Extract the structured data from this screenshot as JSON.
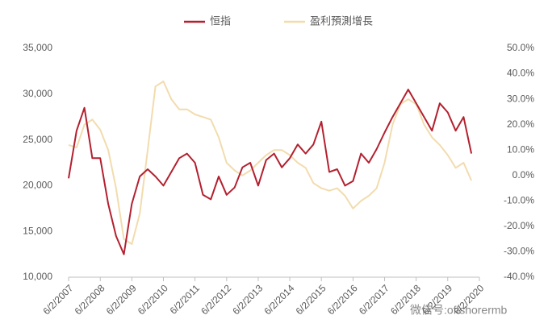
{
  "chart_data": {
    "type": "line",
    "watermark": "微信号:offshorermb",
    "x": [
      "2007-06-02",
      "2007-09-02",
      "2007-12-02",
      "2008-03-02",
      "2008-06-02",
      "2008-09-02",
      "2008-12-02",
      "2009-03-02",
      "2009-06-02",
      "2009-09-02",
      "2009-12-02",
      "2010-03-02",
      "2010-06-02",
      "2010-09-02",
      "2010-12-02",
      "2011-03-02",
      "2011-06-02",
      "2011-09-02",
      "2011-12-02",
      "2012-03-02",
      "2012-06-02",
      "2012-09-02",
      "2012-12-02",
      "2013-03-02",
      "2013-06-02",
      "2013-09-02",
      "2013-12-02",
      "2014-03-02",
      "2014-06-02",
      "2014-09-02",
      "2014-12-02",
      "2015-03-02",
      "2015-06-02",
      "2015-09-02",
      "2015-12-02",
      "2016-03-02",
      "2016-06-02",
      "2016-09-02",
      "2016-12-02",
      "2017-03-02",
      "2017-06-02",
      "2017-09-02",
      "2017-12-02",
      "2018-03-02",
      "2018-06-02",
      "2018-09-02",
      "2018-12-02",
      "2019-03-02",
      "2019-06-02",
      "2019-09-02",
      "2019-12-02",
      "2020-03-02"
    ],
    "series": [
      {
        "name": "恒指",
        "color": "#b3202f",
        "axis": "y",
        "values": [
          20800,
          26000,
          28500,
          23000,
          23000,
          18000,
          14500,
          12500,
          18000,
          21000,
          21800,
          21000,
          20000,
          21500,
          23000,
          23500,
          22500,
          19000,
          18500,
          21000,
          19000,
          19800,
          22000,
          22500,
          20000,
          22800,
          23500,
          22000,
          23000,
          24500,
          23500,
          24500,
          27000,
          21500,
          21800,
          20000,
          20500,
          23500,
          22500,
          24000,
          25800,
          27500,
          29000,
          30500,
          29000,
          27500,
          26000,
          29000,
          28000,
          26000,
          27500,
          23500
        ]
      },
      {
        "name": "盈利預測增長",
        "color": "#f2dcae",
        "axis": "y2",
        "values": [
          12,
          11,
          20,
          22,
          18,
          10,
          -5,
          -25,
          -27,
          -15,
          10,
          35,
          37,
          30,
          26,
          26,
          24,
          23,
          22,
          15,
          5,
          2,
          0,
          2,
          5,
          8,
          10,
          10,
          8,
          5,
          3,
          -3,
          -5,
          -6,
          -5,
          -8,
          -13,
          -10,
          -8,
          -5,
          5,
          20,
          28,
          30,
          28,
          20,
          15,
          12,
          8,
          3,
          5,
          -2
        ]
      }
    ],
    "xlim": [
      "2007-06-02",
      "2020-06-02"
    ],
    "xticks": [
      {
        "value": "2007-06-02",
        "label": "6/2/2007"
      },
      {
        "value": "2008-06-02",
        "label": "6/2/2008"
      },
      {
        "value": "2009-06-02",
        "label": "6/2/2009"
      },
      {
        "value": "2010-06-02",
        "label": "6/2/2010"
      },
      {
        "value": "2011-06-02",
        "label": "6/2/2011"
      },
      {
        "value": "2012-06-02",
        "label": "6/2/2012"
      },
      {
        "value": "2013-06-02",
        "label": "6/2/2013"
      },
      {
        "value": "2014-06-02",
        "label": "6/2/2014"
      },
      {
        "value": "2015-06-02",
        "label": "6/2/2015"
      },
      {
        "value": "2016-06-02",
        "label": "6/2/2016"
      },
      {
        "value": "2017-06-02",
        "label": "6/2/2017"
      },
      {
        "value": "2018-06-02",
        "label": "6/2/2018"
      },
      {
        "value": "2019-06-02",
        "label": "6/2/2019"
      },
      {
        "value": "2020-06-02",
        "label": "6/2/2020"
      }
    ],
    "ylim": [
      10000,
      35000
    ],
    "yticks": [
      {
        "value": 10000,
        "label": "10,000"
      },
      {
        "value": 15000,
        "label": "15,000"
      },
      {
        "value": 20000,
        "label": "20,000"
      },
      {
        "value": 25000,
        "label": "25,000"
      },
      {
        "value": 30000,
        "label": "30,000"
      },
      {
        "value": 35000,
        "label": "35,000"
      }
    ],
    "y2lim": [
      -40,
      50
    ],
    "y2ticks": [
      {
        "value": -40,
        "label": "-40.0%"
      },
      {
        "value": -30,
        "label": "-30.0%"
      },
      {
        "value": -20,
        "label": "-20.0%"
      },
      {
        "value": -10,
        "label": "-10.0%"
      },
      {
        "value": 0,
        "label": "0.0%"
      },
      {
        "value": 10,
        "label": "10.0%"
      },
      {
        "value": 20,
        "label": "20.0%"
      },
      {
        "value": 30,
        "label": "30.0%"
      },
      {
        "value": 40,
        "label": "40.0%"
      },
      {
        "value": 50,
        "label": "50.0%"
      }
    ],
    "legend": "top"
  }
}
